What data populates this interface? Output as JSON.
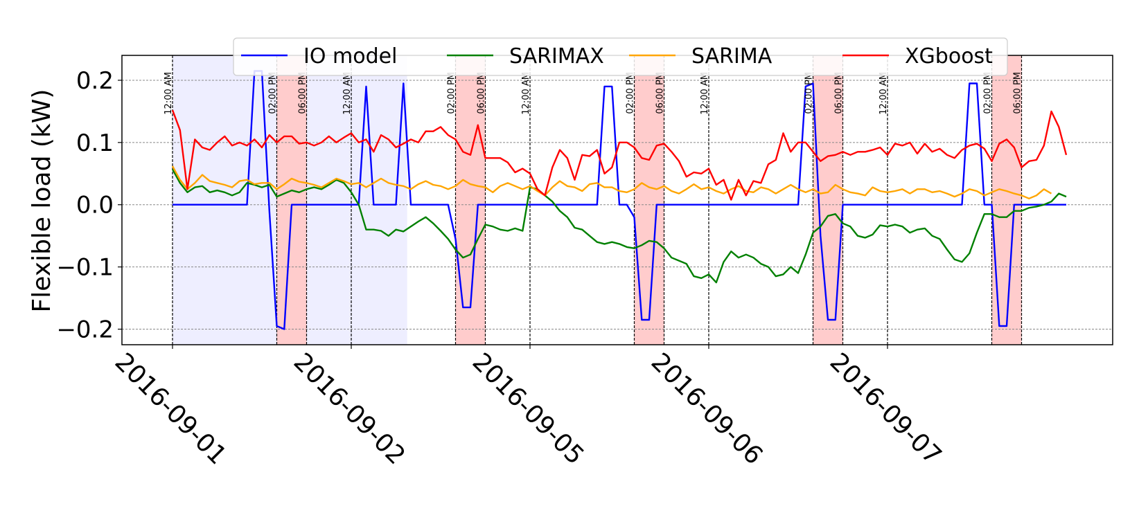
{
  "chart_data": {
    "type": "line",
    "title": "",
    "xlabel": "",
    "ylabel": "Flexible load (kW)",
    "ylim": [
      -0.225,
      0.24
    ],
    "yticks": [
      0.2,
      0.1,
      0.0,
      -0.1,
      -0.2
    ],
    "ytick_labels": [
      "0.2",
      "0.1",
      "0.0",
      "−0.1",
      "−0.2"
    ],
    "xlim_hours": [
      0,
      31.5
    ],
    "day_labels": [
      "2016-09-01",
      "2016-09-02",
      "2016-09-05",
      "2016-09-06",
      "2016-09-07"
    ],
    "grid": true,
    "legend_position": "top",
    "annotations": {
      "midnight_label": "12:00 AM",
      "peak_start_label": "02:00 PM",
      "peak_end_label": "06:00 PM",
      "peak_hours": [
        14,
        18
      ],
      "midnight_line_color": "#000000",
      "peak_region_color": "#ffcccc",
      "offpeak_region_color": "#eeeeff"
    },
    "sample_interval_hours": 1,
    "series": [
      {
        "name": "IO model",
        "color": "#0000ff",
        "values": [
          0,
          0,
          0,
          0,
          0,
          0,
          0,
          0,
          0,
          0,
          0,
          0.215,
          0.215,
          -0.01,
          -0.195,
          -0.2,
          0,
          0,
          0,
          0,
          0,
          0,
          0,
          0,
          0,
          0,
          0.19,
          0,
          0,
          0,
          0,
          0.195,
          0,
          0,
          0,
          0,
          0,
          0,
          -0.055,
          -0.165,
          -0.165,
          0,
          0,
          0,
          0,
          0,
          0,
          0,
          0,
          0,
          0,
          0,
          0,
          0,
          0,
          0,
          0,
          0,
          0.19,
          0.19,
          0,
          0,
          -0.02,
          -0.185,
          -0.185,
          0,
          0,
          0,
          0,
          0,
          0,
          0,
          0,
          0,
          0,
          0,
          0,
          0,
          0,
          0,
          0,
          0,
          0,
          0,
          0,
          0.19,
          0.195,
          -0.05,
          -0.185,
          -0.185,
          0,
          0,
          0,
          0,
          0,
          0,
          0,
          0,
          0,
          0,
          0,
          0,
          0,
          0,
          0,
          0,
          0,
          0.195,
          0.195,
          0,
          0,
          -0.195,
          -0.195,
          0,
          0,
          0,
          0,
          0,
          0,
          0,
          0
        ]
      },
      {
        "name": "SARIMAX",
        "color": "#008000",
        "values": [
          0.057,
          0.035,
          0.02,
          0.028,
          0.03,
          0.02,
          0.023,
          0.02,
          0.015,
          0.02,
          0.035,
          0.032,
          0.028,
          0.032,
          0.013,
          0.018,
          0.023,
          0.02,
          0.025,
          0.028,
          0.025,
          0.032,
          0.04,
          0.035,
          0.02,
          0,
          -0.04,
          -0.04,
          -0.042,
          -0.05,
          -0.04,
          -0.043,
          -0.035,
          -0.027,
          -0.02,
          -0.03,
          -0.042,
          -0.055,
          -0.072,
          -0.085,
          -0.08,
          -0.055,
          -0.032,
          -0.035,
          -0.04,
          -0.042,
          -0.038,
          -0.042,
          0.028,
          0.025,
          0.015,
          0.005,
          -0.01,
          -0.02,
          -0.037,
          -0.04,
          -0.05,
          -0.06,
          -0.063,
          -0.06,
          -0.063,
          -0.068,
          -0.07,
          -0.065,
          -0.058,
          -0.06,
          -0.07,
          -0.085,
          -0.09,
          -0.095,
          -0.115,
          -0.118,
          -0.112,
          -0.125,
          -0.092,
          -0.075,
          -0.085,
          -0.08,
          -0.085,
          -0.095,
          -0.1,
          -0.115,
          -0.112,
          -0.1,
          -0.11,
          -0.08,
          -0.045,
          -0.035,
          -0.018,
          -0.015,
          -0.03,
          -0.035,
          -0.05,
          -0.053,
          -0.048,
          -0.033,
          -0.035,
          -0.032,
          -0.035,
          -0.045,
          -0.04,
          -0.038,
          -0.05,
          -0.055,
          -0.072,
          -0.088,
          -0.092,
          -0.078,
          -0.045,
          -0.015,
          -0.015,
          -0.02,
          -0.02,
          -0.01,
          -0.01,
          -0.005,
          -0.003,
          0,
          0.005,
          0.018,
          0.013
        ]
      },
      {
        "name": "SARIMA",
        "color": "#ffa500",
        "values": [
          0.062,
          0.04,
          0.025,
          0.035,
          0.048,
          0.038,
          0.035,
          0.032,
          0.028,
          0.038,
          0.04,
          0.033,
          0.035,
          0.035,
          0.025,
          0.033,
          0.042,
          0.037,
          0.035,
          0.032,
          0.028,
          0.035,
          0.042,
          0.038,
          0.033,
          0.035,
          0.028,
          0.035,
          0.042,
          0.035,
          0.032,
          0.03,
          0.025,
          0.033,
          0.038,
          0.032,
          0.03,
          0.025,
          0.03,
          0.04,
          0.033,
          0.03,
          0.028,
          0.02,
          0.03,
          0.035,
          0.03,
          0.025,
          0.03,
          0.022,
          0.015,
          0.028,
          0.038,
          0.03,
          0.028,
          0.022,
          0.033,
          0.035,
          0.028,
          0.028,
          0.022,
          0.02,
          0.025,
          0.035,
          0.028,
          0.025,
          0.03,
          0.022,
          0.018,
          0.025,
          0.033,
          0.025,
          0.028,
          0.022,
          0.018,
          0.025,
          0.03,
          0.022,
          0.02,
          0.028,
          0.025,
          0.018,
          0.025,
          0.032,
          0.025,
          0.02,
          0.025,
          0.018,
          0.02,
          0.032,
          0.025,
          0.02,
          0.018,
          0.015,
          0.028,
          0.022,
          0.02,
          0.022,
          0.025,
          0.018,
          0.025,
          0.025,
          0.02,
          0.022,
          0.018,
          0.013,
          0.018,
          0.025,
          0.022,
          0.015,
          0.02,
          0.025,
          0.022,
          0.018,
          0.015,
          0.01,
          0.015,
          0.025,
          0.018
        ]
      },
      {
        "name": "XGboost",
        "color": "#ff0000",
        "values": [
          0.152,
          0.12,
          0.025,
          0.105,
          0.092,
          0.088,
          0.1,
          0.11,
          0.095,
          0.1,
          0.095,
          0.105,
          0.092,
          0.112,
          0.1,
          0.11,
          0.11,
          0.098,
          0.1,
          0.095,
          0.1,
          0.11,
          0.1,
          0.108,
          0.115,
          0.1,
          0.105,
          0.085,
          0.112,
          0.105,
          0.092,
          0.098,
          0.105,
          0.1,
          0.118,
          0.118,
          0.125,
          0.112,
          0.105,
          0.085,
          0.08,
          0.128,
          0.075,
          0.075,
          0.075,
          0.068,
          0.052,
          0.058,
          0.05,
          0.025,
          0.015,
          0.06,
          0.088,
          0.075,
          0.04,
          0.08,
          0.078,
          0.088,
          0.05,
          0.06,
          0.1,
          0.1,
          0.092,
          0.075,
          0.072,
          0.095,
          0.098,
          0.085,
          0.07,
          0.045,
          0.052,
          0.05,
          0.058,
          0.032,
          0.04,
          0.008,
          0.04,
          0.015,
          0.038,
          0.035,
          0.065,
          0.072,
          0.115,
          0.085,
          0.1,
          0.1,
          0.085,
          0.07,
          0.078,
          0.08,
          0.085,
          0.08,
          0.085,
          0.085,
          0.088,
          0.092,
          0.08,
          0.098,
          0.095,
          0.1,
          0.082,
          0.098,
          0.085,
          0.09,
          0.08,
          0.075,
          0.088,
          0.095,
          0.098,
          0.09,
          0.07,
          0.098,
          0.105,
          0.092,
          0.06,
          0.07,
          0.072,
          0.095,
          0.15,
          0.125,
          0.08
        ]
      }
    ]
  }
}
